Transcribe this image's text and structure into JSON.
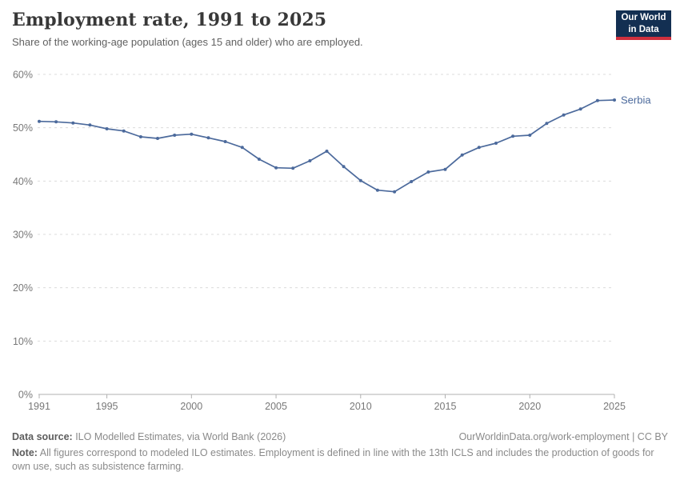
{
  "header": {
    "title": "Employment rate, 1991 to 2025",
    "subtitle": "Share of the working-age population (ages 15 and older) who are employed.",
    "logo": {
      "line1": "Our World",
      "line2": "in Data",
      "bg_color": "#132f52",
      "accent_color": "#cf303e"
    }
  },
  "chart_data": {
    "type": "line",
    "title": "Employment rate, 1991 to 2025",
    "x": [
      1991,
      1992,
      1993,
      1994,
      1995,
      1996,
      1997,
      1998,
      1999,
      2000,
      2001,
      2002,
      2003,
      2004,
      2005,
      2006,
      2007,
      2008,
      2009,
      2010,
      2011,
      2012,
      2013,
      2014,
      2015,
      2016,
      2017,
      2018,
      2019,
      2020,
      2021,
      2022,
      2023,
      2024,
      2025
    ],
    "series": [
      {
        "name": "Serbia",
        "color": "#4C6A9C",
        "values": [
          51.2,
          51.1,
          50.9,
          50.5,
          49.8,
          49.4,
          48.3,
          48.0,
          48.6,
          48.8,
          48.1,
          47.4,
          46.3,
          44.1,
          42.5,
          42.4,
          43.8,
          45.6,
          42.7,
          40.1,
          38.3,
          38.0,
          39.9,
          41.7,
          42.2,
          44.9,
          46.3,
          47.1,
          48.4,
          48.6,
          50.8,
          52.4,
          53.5,
          55.1,
          55.2
        ]
      }
    ],
    "xlabel": "",
    "ylabel": "",
    "ylim": [
      0,
      60
    ],
    "yticks": [
      0,
      10,
      20,
      30,
      40,
      50,
      60
    ],
    "ytick_suffix": "%",
    "xticks": [
      1991,
      1995,
      2000,
      2005,
      2010,
      2015,
      2020,
      2025
    ],
    "grid": "horizontal-dashed",
    "legend_position": "end-of-line-label"
  },
  "footer": {
    "data_source_label": "Data source:",
    "data_source_text": " ILO Modelled Estimates, via World Bank (2026)",
    "url_text": "OurWorldinData.org/work-employment | CC BY",
    "note_label": "Note:",
    "note_text": " All figures correspond to modeled ILO estimates. Employment is defined in line with the 13th ICLS and includes the production of goods for own use, such as subsistence farming."
  },
  "colors": {
    "line": "#4C6A9C",
    "gridline": "#dcdcdc",
    "axis": "#b0b0b0",
    "tick_label": "#787878",
    "title": "#383838",
    "subtitle": "#616161",
    "footer_text": "#8a8a8a",
    "logo_bg": "#132f52",
    "logo_accent": "#cf303e"
  }
}
